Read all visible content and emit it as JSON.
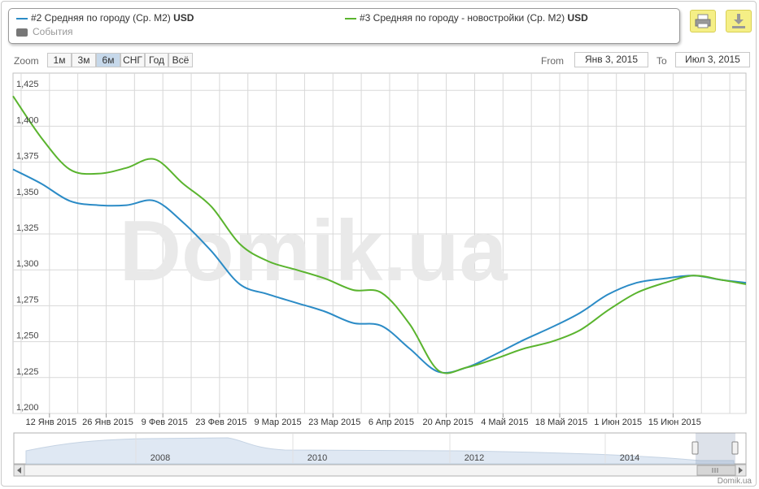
{
  "legend": {
    "series1_label": "#2 Средняя по городу (Ср. М2)",
    "series1_unit": "USD",
    "series2_label": "#3 Средняя по городу - новостройки (Ср. М2)",
    "series2_unit": "USD",
    "events_label": "События"
  },
  "toolbar": {
    "print_icon": "printer-icon",
    "download_icon": "download-icon"
  },
  "zoom": {
    "label": "Zoom",
    "buttons": [
      "1м",
      "3м",
      "6м",
      "СНГ",
      "Год",
      "Всё"
    ],
    "selected": "6м"
  },
  "range": {
    "from_label": "From",
    "from_value": "Янв 3, 2015",
    "to_label": "To",
    "to_value": "Июл 3, 2015"
  },
  "watermark": "Domik.ua",
  "credit": "Domik.ua",
  "navigator": {
    "years": [
      "2008",
      "2010",
      "2012",
      "2014"
    ]
  },
  "colors": {
    "series1": "#2b8bc6",
    "series2": "#5ab42e",
    "grid": "#d8d8d8"
  },
  "chart_data": {
    "type": "line",
    "title": "",
    "xlabel": "",
    "ylabel": "",
    "x_ticks": [
      "12 Янв 2015",
      "26 Янв 2015",
      "9 Фев 2015",
      "23 Фев 2015",
      "9 Мар 2015",
      "23 Мар 2015",
      "6 Апр 2015",
      "20 Апр 2015",
      "4 Май 2015",
      "18 Май 2015",
      "1 Июн 2015",
      "15 Июн 2015"
    ],
    "y_ticks": [
      1200,
      1225,
      1250,
      1275,
      1300,
      1325,
      1350,
      1375,
      1400,
      1425
    ],
    "xlim": [
      "2015-01-03",
      "2015-07-03"
    ],
    "ylim": [
      1200,
      1437
    ],
    "grid": true,
    "legend_position": "top",
    "series": [
      {
        "name": "#2 Средняя по городу (Ср. М2) USD",
        "x": [
          "2015-01-03",
          "2015-01-10",
          "2015-01-17",
          "2015-01-24",
          "2015-01-31",
          "2015-02-07",
          "2015-02-14",
          "2015-02-21",
          "2015-02-28",
          "2015-03-07",
          "2015-03-14",
          "2015-03-21",
          "2015-03-28",
          "2015-04-04",
          "2015-04-11",
          "2015-04-18",
          "2015-04-25",
          "2015-05-02",
          "2015-05-09",
          "2015-05-16",
          "2015-05-23",
          "2015-05-30",
          "2015-06-06",
          "2015-06-13",
          "2015-06-20",
          "2015-06-27",
          "2015-07-03"
        ],
        "values": [
          1370,
          1360,
          1348,
          1345,
          1345,
          1348,
          1333,
          1313,
          1290,
          1283,
          1277,
          1271,
          1263,
          1261,
          1245,
          1229,
          1232,
          1241,
          1251,
          1260,
          1270,
          1283,
          1291,
          1294,
          1296,
          1293,
          1291
        ]
      },
      {
        "name": "#3 Средняя по городу - новостройки (Ср. М2) USD",
        "x": [
          "2015-01-03",
          "2015-01-10",
          "2015-01-17",
          "2015-01-24",
          "2015-01-31",
          "2015-02-07",
          "2015-02-14",
          "2015-02-21",
          "2015-02-28",
          "2015-03-07",
          "2015-03-14",
          "2015-03-21",
          "2015-03-28",
          "2015-04-04",
          "2015-04-11",
          "2015-04-18",
          "2015-04-25",
          "2015-05-02",
          "2015-05-09",
          "2015-05-16",
          "2015-05-23",
          "2015-05-30",
          "2015-06-06",
          "2015-06-13",
          "2015-06-20",
          "2015-06-27",
          "2015-07-03"
        ],
        "values": [
          1421,
          1392,
          1370,
          1367,
          1371,
          1377,
          1360,
          1344,
          1318,
          1306,
          1300,
          1294,
          1286,
          1284,
          1262,
          1230,
          1232,
          1238,
          1245,
          1250,
          1258,
          1272,
          1284,
          1291,
          1296,
          1293,
          1290
        ]
      }
    ]
  }
}
